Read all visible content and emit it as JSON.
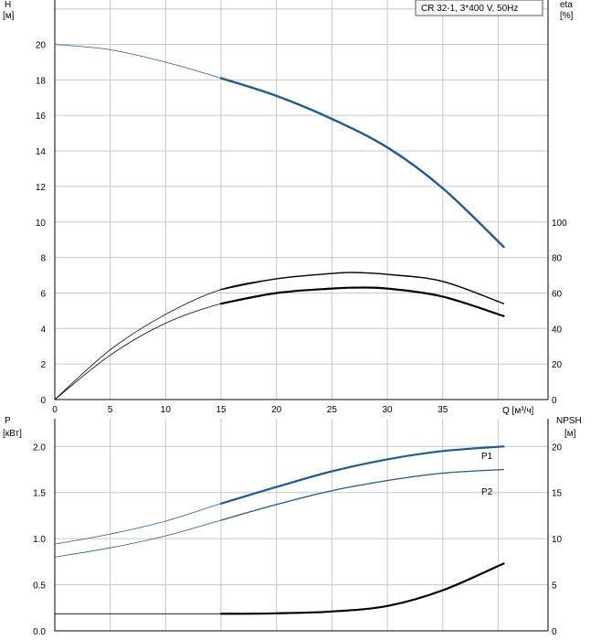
{
  "legend_label": "CR 32-1, 3*400 V, 50Hz",
  "colors": {
    "head": "#1f5a96",
    "power": "#1f5a96",
    "eff": "#000000",
    "npsh": "#000000",
    "grid": "#c8c8c8"
  },
  "chart_data": [
    {
      "type": "line",
      "title": "",
      "x_label": "Q [м³/ч]",
      "x_ticks": [
        0,
        5,
        10,
        15,
        20,
        25,
        30,
        35
      ],
      "x_range": [
        0,
        44.5
      ],
      "left_axis": {
        "label_line1": "H",
        "label_line2": "[м]",
        "range": [
          0,
          22.5
        ],
        "ticks": [
          0,
          2,
          4,
          6,
          8,
          10,
          12,
          14,
          16,
          18,
          20
        ]
      },
      "right_axis": {
        "label_line1": "eta",
        "label_line2": "[%]",
        "range": [
          0,
          225
        ],
        "ticks": [
          0,
          20,
          40,
          60,
          80,
          100
        ]
      },
      "series": [
        {
          "key": "head",
          "axis": "left",
          "highlight_from": 15,
          "x": [
            0,
            5,
            10,
            15,
            20,
            25,
            30,
            35,
            40.5
          ],
          "y": [
            20.0,
            19.7,
            19.0,
            18.1,
            17.1,
            15.8,
            14.2,
            11.9,
            8.6
          ]
        },
        {
          "key": "eff_total",
          "axis": "right",
          "highlight_from": 15,
          "x": [
            0,
            5,
            10,
            15,
            20,
            25,
            27,
            30,
            35,
            40.5
          ],
          "y": [
            0,
            28,
            48,
            62,
            68,
            71,
            71.5,
            70.5,
            66.5,
            54
          ]
        },
        {
          "key": "eff_pump",
          "axis": "right",
          "highlight_from": 15,
          "x": [
            0,
            5,
            10,
            15,
            20,
            25,
            27,
            30,
            35,
            40.5
          ],
          "y": [
            0,
            25,
            43,
            54,
            60,
            62.5,
            63,
            62.5,
            58,
            47
          ]
        }
      ]
    },
    {
      "type": "line",
      "title": "",
      "x_range": [
        0,
        44.5
      ],
      "left_axis": {
        "label_line1": "P",
        "label_line2": "[кВт]",
        "range": [
          0,
          2.3
        ],
        "ticks": [
          "0.0",
          "0.5",
          "1.0",
          "1.5",
          "2.0"
        ]
      },
      "right_axis": {
        "label_line1": "NPSH",
        "label_line2": "[м]",
        "range": [
          0,
          23
        ],
        "ticks": [
          0,
          5,
          10,
          15,
          20
        ]
      },
      "series": [
        {
          "key": "p1",
          "name": "P1",
          "axis": "left",
          "highlight_from": 15,
          "x": [
            0,
            5,
            10,
            15,
            20,
            25,
            30,
            35,
            40.5
          ],
          "y": [
            0.94,
            1.05,
            1.19,
            1.38,
            1.56,
            1.73,
            1.86,
            1.95,
            2.0
          ]
        },
        {
          "key": "p2",
          "name": "P2",
          "axis": "left",
          "highlight_from": 15,
          "x": [
            0,
            5,
            10,
            15,
            20,
            25,
            30,
            35,
            40.5
          ],
          "y": [
            0.8,
            0.9,
            1.03,
            1.2,
            1.37,
            1.52,
            1.63,
            1.71,
            1.75
          ]
        },
        {
          "key": "npsh",
          "axis": "right",
          "highlight_from": 15,
          "x": [
            0,
            5,
            10,
            15,
            20,
            25,
            30,
            35,
            40.5
          ],
          "y": [
            1.85,
            1.85,
            1.85,
            1.85,
            1.9,
            2.1,
            2.7,
            4.4,
            7.3
          ]
        }
      ]
    }
  ]
}
